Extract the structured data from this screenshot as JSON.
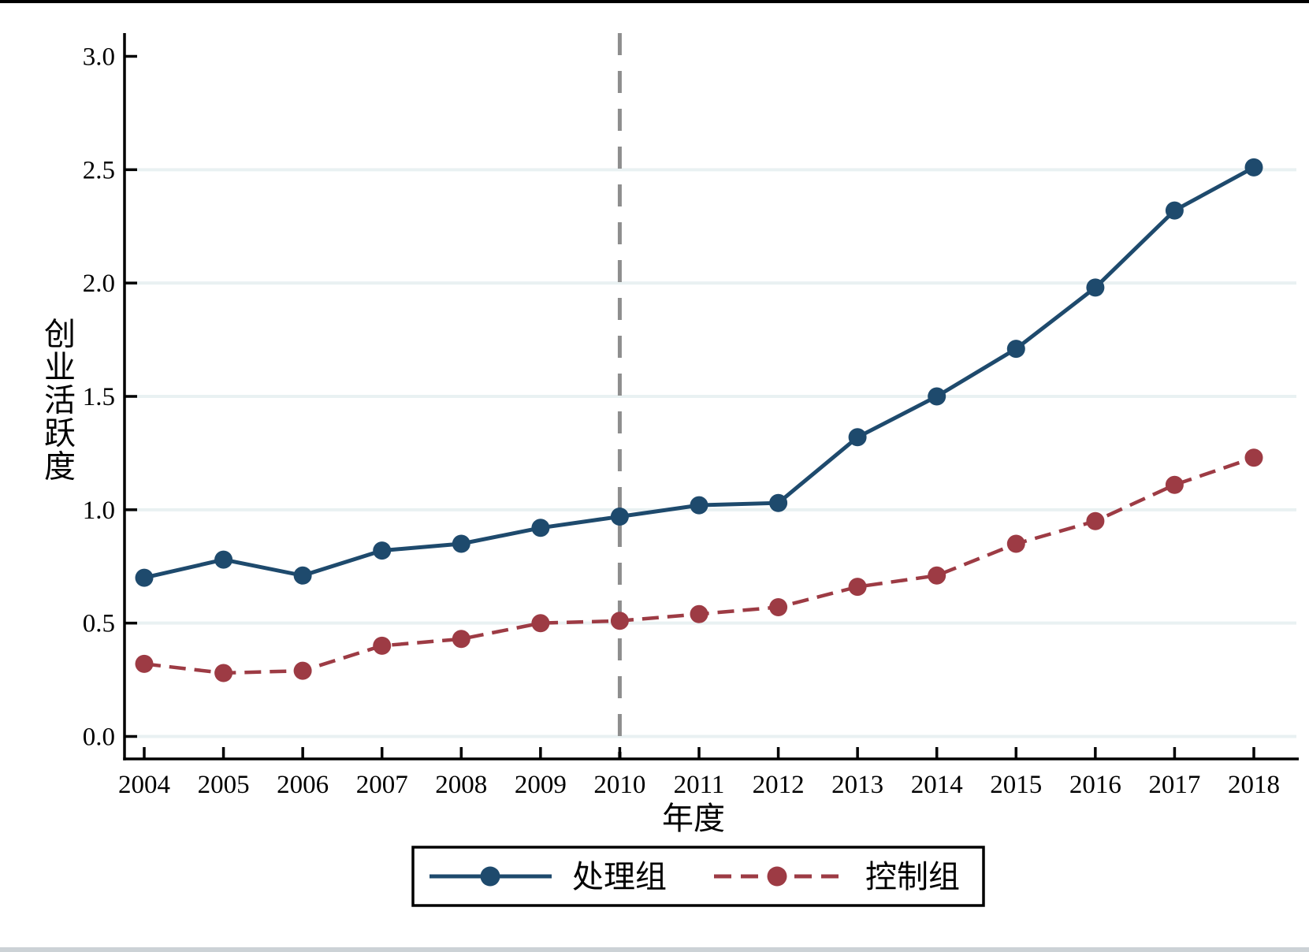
{
  "figure": {
    "top_border_color": "#000000",
    "bottom_strip_color": "#ccd2d6",
    "background": "#ffffff"
  },
  "chart_data": {
    "type": "line",
    "title": "",
    "xlabel": "年度",
    "ylabel": "创业活跃度",
    "x": [
      2004,
      2005,
      2006,
      2007,
      2008,
      2009,
      2010,
      2011,
      2012,
      2013,
      2014,
      2015,
      2016,
      2017,
      2018
    ],
    "series": [
      {
        "name": "处理组",
        "style": "solid",
        "color": "#1e4a6d",
        "values": [
          0.7,
          0.78,
          0.71,
          0.82,
          0.85,
          0.92,
          0.97,
          1.02,
          1.03,
          1.32,
          1.5,
          1.71,
          1.98,
          2.32,
          2.51
        ]
      },
      {
        "name": "控制组",
        "style": "dashed",
        "color": "#9d3b44",
        "values": [
          0.32,
          0.28,
          0.29,
          0.4,
          0.43,
          0.5,
          0.51,
          0.54,
          0.57,
          0.66,
          0.71,
          0.85,
          0.95,
          1.11,
          1.23
        ]
      }
    ],
    "reference_line": {
      "x": 2010,
      "style": "dashed",
      "color": "#8e8e8e"
    },
    "y_ticks": [
      "0.0",
      "0.5",
      "1.0",
      "1.5",
      "2.0",
      "2.5",
      "3.0"
    ],
    "y_tick_values": [
      0,
      0.5,
      1,
      1.5,
      2,
      2.5,
      3
    ],
    "gridline_values": [
      0,
      0.5,
      1,
      1.5,
      2,
      2.5
    ],
    "gridline_color": "#e9f1f2",
    "ylim": [
      0,
      3.05
    ],
    "xlim": [
      2004,
      2018
    ],
    "grid": true,
    "legend_position": "bottom"
  }
}
